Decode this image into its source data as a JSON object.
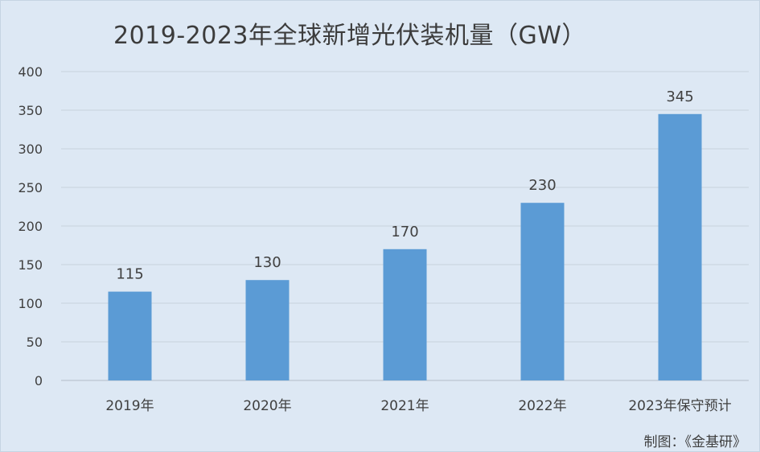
{
  "chart_data": {
    "type": "bar",
    "title": "2019-2023年全球新增光伏装机量（GW）",
    "categories": [
      "2019年",
      "2020年",
      "2021年",
      "2022年",
      "2023年保守预计"
    ],
    "values": [
      115,
      130,
      170,
      230,
      345
    ],
    "data_labels": [
      "115",
      "130",
      "170",
      "230",
      "345"
    ],
    "ylim": [
      0,
      400
    ],
    "yticks": [
      0,
      50,
      100,
      150,
      200,
      250,
      300,
      350,
      400
    ],
    "grid": true,
    "legend": "none",
    "bar_color": "#5b9bd5",
    "background_color": "#dde8f4",
    "gridline_color": "#c8d2dd"
  },
  "credit": "制图：《金基研》"
}
